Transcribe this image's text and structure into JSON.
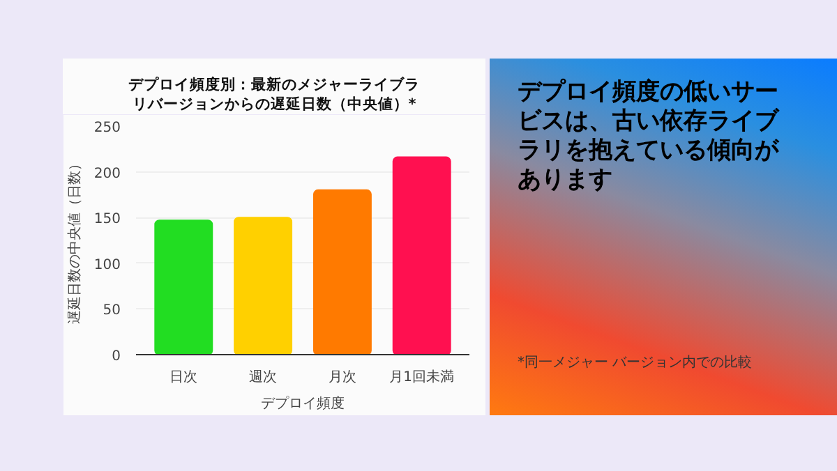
{
  "chart_data": [
    {
      "type": "bar",
      "title": "デプロイ頻度別：最新のメジャーライブラリバージョンからの遅延日数（中央値）*",
      "xlabel": "デプロイ頻度",
      "ylabel": "遅延日数の中央値（日数）",
      "categories": [
        "日次",
        "週次",
        "月次",
        "月1回未満"
      ],
      "values": [
        147,
        150,
        180,
        216
      ],
      "colors": [
        "#22dd22",
        "#ffd000",
        "#ff7a00",
        "#ff1050"
      ],
      "ylim": [
        0,
        250
      ],
      "yticks": [
        0,
        50,
        100,
        150,
        200,
        250
      ],
      "grid": "y"
    },
    {
      "type": "other",
      "title": "デプロイ頻度の低いサービスは、古い依存ライブラリを抱えている傾向があります",
      "annotations": [
        "*同一メジャー バージョン内での比較"
      ]
    }
  ]
}
